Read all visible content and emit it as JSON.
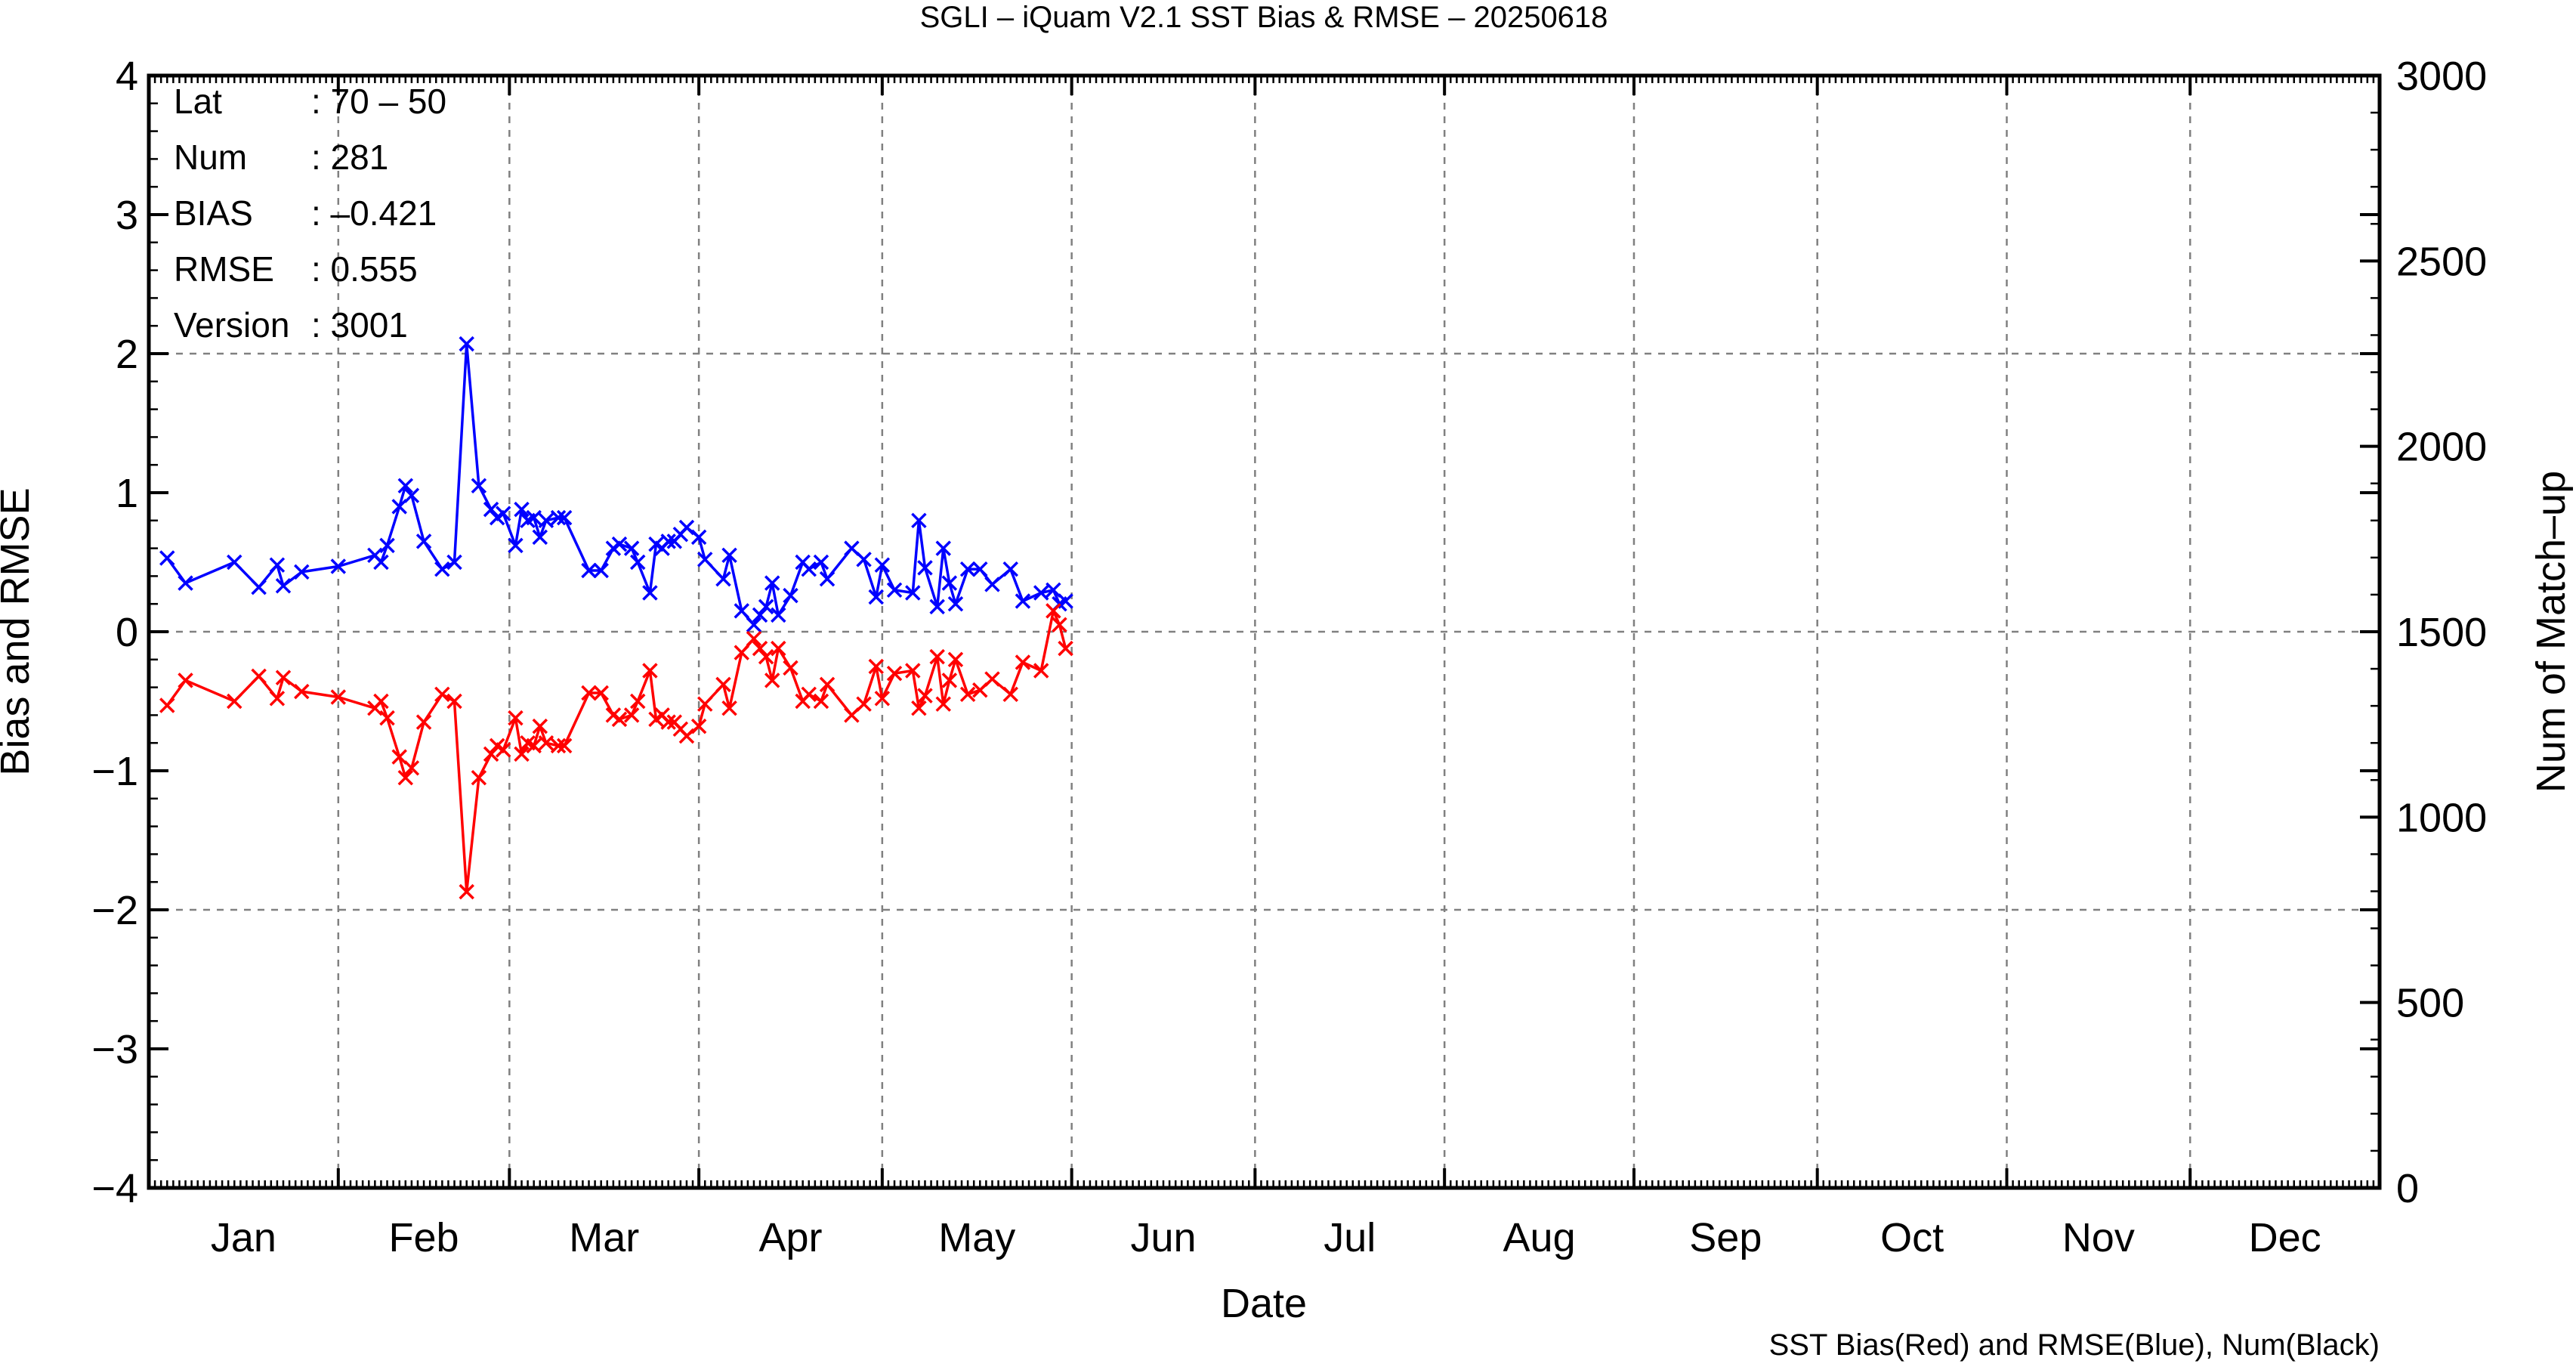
{
  "title": "SGLI – iQuam V2.1 SST Bias & RMSE  – 20250618",
  "info_box": [
    {
      "key": "Lat",
      "value": ": 70 – 50"
    },
    {
      "key": "Num",
      "value": ": 281"
    },
    {
      "key": "BIAS",
      "value": ": –0.421"
    },
    {
      "key": "RMSE",
      "value": ": 0.555"
    },
    {
      "key": "Version",
      "value": ": 3001"
    }
  ],
  "footer_note": "SST Bias(Red) and RMSE(Blue), Num(Black)",
  "chart_data": {
    "type": "line",
    "title": "SGLI – iQuam V2.1 SST Bias & RMSE  – 20250618",
    "xlabel": "Date",
    "ylabel": "Bias and RMSE",
    "y2label": "Num of Match–up",
    "xlim": [
      1,
      366
    ],
    "ylim": [
      -4,
      4
    ],
    "y2lim": [
      0,
      3000
    ],
    "month_labels": [
      "Jan",
      "Feb",
      "Mar",
      "Apr",
      "May",
      "Jun",
      "Jul",
      "Aug",
      "Sep",
      "Oct",
      "Nov",
      "Dec"
    ],
    "yticks": [
      "−4",
      "−3",
      "−2",
      "−1",
      "0",
      "1",
      "2",
      "3",
      "4"
    ],
    "y2ticks": [
      "0",
      "500",
      "1000",
      "1500",
      "2000",
      "2500",
      "3000"
    ],
    "grid": true,
    "colors": {
      "bias": "#ff0000",
      "rmse": "#0000ff",
      "grid": "#808080"
    },
    "series": [
      {
        "color": "#0000ff",
        "x": [
          4,
          7,
          15,
          19,
          22,
          23,
          26,
          32,
          38,
          39,
          40,
          42,
          43,
          44,
          46,
          49,
          51,
          53,
          55,
          57,
          58,
          59,
          61,
          62,
          63,
          64,
          65,
          66,
          68,
          69,
          73,
          75,
          77,
          78,
          80,
          81,
          83,
          84,
          85,
          86,
          87,
          88,
          89,
          91,
          92,
          95,
          96,
          98,
          100,
          101,
          102,
          103,
          104,
          106,
          108,
          109,
          111,
          112,
          116,
          118,
          120,
          121,
          123,
          126,
          127,
          128,
          130,
          131,
          132,
          133,
          135,
          137,
          139,
          142,
          144,
          147,
          149,
          150,
          151
        ],
        "y": [
          0.53,
          0.35,
          0.5,
          0.32,
          0.48,
          0.33,
          0.43,
          0.47,
          0.55,
          0.5,
          0.62,
          0.9,
          1.05,
          0.98,
          0.65,
          0.45,
          0.5,
          2.07,
          1.05,
          0.88,
          0.82,
          0.85,
          0.62,
          0.88,
          0.8,
          0.82,
          0.68,
          0.8,
          0.82,
          0.82,
          0.44,
          0.44,
          0.6,
          0.63,
          0.6,
          0.5,
          0.28,
          0.63,
          0.6,
          0.65,
          0.65,
          0.7,
          0.75,
          0.68,
          0.52,
          0.38,
          0.55,
          0.15,
          0.05,
          0.12,
          0.18,
          0.35,
          0.12,
          0.26,
          0.5,
          0.45,
          0.5,
          0.38,
          0.6,
          0.52,
          0.25,
          0.48,
          0.3,
          0.28,
          0.8,
          0.46,
          0.18,
          0.6,
          0.35,
          0.2,
          0.45,
          0.45,
          0.34,
          0.45,
          0.22,
          0.28,
          0.3,
          0.2,
          0.22
        ]
      },
      {
        "color": "#ff0000",
        "x": [
          4,
          7,
          15,
          19,
          22,
          23,
          26,
          32,
          38,
          39,
          40,
          42,
          43,
          44,
          46,
          49,
          51,
          53,
          55,
          57,
          58,
          59,
          61,
          62,
          63,
          64,
          65,
          66,
          68,
          69,
          73,
          75,
          77,
          78,
          80,
          81,
          83,
          84,
          85,
          86,
          87,
          88,
          89,
          91,
          92,
          95,
          96,
          98,
          100,
          101,
          102,
          103,
          104,
          106,
          108,
          109,
          111,
          112,
          116,
          118,
          120,
          121,
          123,
          126,
          127,
          128,
          130,
          131,
          132,
          133,
          135,
          137,
          139,
          142,
          144,
          147,
          149,
          150,
          151
        ],
        "y": [
          -0.53,
          -0.35,
          -0.5,
          -0.32,
          -0.48,
          -0.33,
          -0.43,
          -0.47,
          -0.55,
          -0.5,
          -0.62,
          -0.9,
          -1.05,
          -0.98,
          -0.65,
          -0.45,
          -0.5,
          -1.87,
          -1.05,
          -0.88,
          -0.82,
          -0.85,
          -0.62,
          -0.88,
          -0.8,
          -0.82,
          -0.68,
          -0.8,
          -0.82,
          -0.82,
          -0.44,
          -0.44,
          -0.6,
          -0.63,
          -0.6,
          -0.5,
          -0.28,
          -0.63,
          -0.6,
          -0.65,
          -0.65,
          -0.7,
          -0.75,
          -0.68,
          -0.52,
          -0.38,
          -0.55,
          -0.15,
          -0.05,
          -0.12,
          -0.18,
          -0.35,
          -0.12,
          -0.26,
          -0.5,
          -0.45,
          -0.5,
          -0.38,
          -0.6,
          -0.52,
          -0.25,
          -0.48,
          -0.3,
          -0.28,
          -0.55,
          -0.46,
          -0.18,
          -0.52,
          -0.35,
          -0.2,
          -0.45,
          -0.42,
          -0.34,
          -0.45,
          -0.22,
          -0.28,
          0.15,
          0.05,
          -0.12
        ]
      }
    ]
  }
}
